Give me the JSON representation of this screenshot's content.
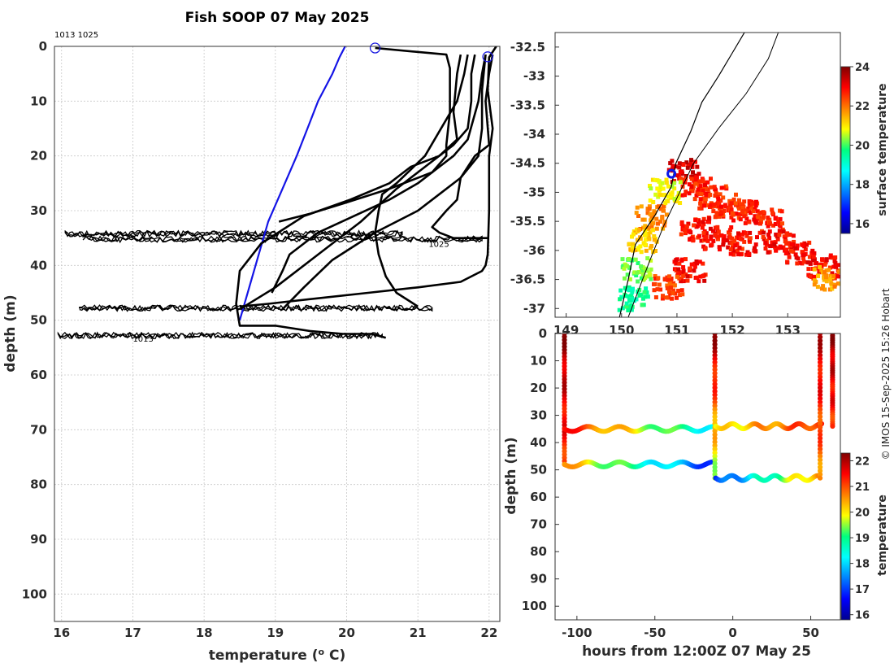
{
  "chart_data": [
    {
      "type": "line",
      "title": "Fish SOOP 07 May 2025",
      "xlabel": "temperature (°C)",
      "xlabel_prefix": "temperature (",
      "xlabel_sup": "o",
      "xlabel_suffix": " C)",
      "ylabel": "depth (m)",
      "xlim": [
        15.9,
        22.15
      ],
      "ylim": [
        0,
        105
      ],
      "y_reversed": true,
      "xticks": [
        16,
        17,
        18,
        19,
        20,
        21,
        22
      ],
      "yticks": [
        0,
        10,
        20,
        30,
        40,
        50,
        60,
        70,
        80,
        90,
        100
      ],
      "grid": true,
      "top_annotation": "1013 1025",
      "profile_labels": [
        {
          "text": "1025",
          "x": 21.15,
          "y": 36
        },
        {
          "text": "1013",
          "x": 17.0,
          "y": 53.3
        }
      ],
      "circles": [
        {
          "x": 20.4,
          "y": 0.3
        },
        {
          "x": 21.98,
          "y": 1.9
        }
      ],
      "series": [
        {
          "name": "reference",
          "color": "#1414e6",
          "x": [
            19.98,
            19.9,
            19.8,
            19.6,
            19.45,
            19.3,
            19.1,
            18.9,
            18.7,
            18.5
          ],
          "y": [
            0,
            2,
            5,
            10,
            15,
            20,
            26,
            32,
            41,
            50
          ]
        },
        {
          "name": "surface",
          "color": "#000000",
          "x": [
            20.4,
            21.4,
            21.45,
            21.45,
            21.4,
            21.4,
            21.2,
            20.6,
            20.0,
            19.5,
            19.05
          ],
          "y": [
            0.3,
            1.5,
            4,
            12,
            18,
            20,
            23,
            26,
            28.5,
            30.5,
            32
          ]
        },
        {
          "name": "p2",
          "color": "#000000",
          "x": [
            21.6,
            21.55,
            21.5,
            21.55,
            21.3,
            20.9,
            20.6,
            20.05,
            19.4,
            18.8,
            18.5,
            18.45,
            18.5,
            19.0,
            19.5,
            19.95,
            20.35,
            20.55
          ],
          "y": [
            1.5,
            5,
            12,
            17,
            20,
            22,
            25,
            28,
            31,
            36,
            41,
            47,
            51,
            51,
            52,
            52.5,
            52.5,
            53.2
          ]
        },
        {
          "name": "p3",
          "color": "#000000",
          "x": [
            21.7,
            21.65,
            21.55,
            21.1,
            20.7,
            20.5,
            20.45,
            20.4,
            20.45,
            20.55,
            20.7,
            21.0
          ],
          "y": [
            1.5,
            5,
            10,
            20,
            25,
            27,
            30,
            34,
            38,
            42,
            45,
            47.5
          ]
        },
        {
          "name": "p4",
          "color": "#000000",
          "x": [
            21.8,
            21.75,
            21.75,
            21.7,
            21.5,
            21.1,
            20.7,
            20.2,
            19.6,
            19.0,
            18.5
          ],
          "y": [
            1.5,
            5,
            10,
            15,
            18,
            22,
            26,
            32,
            38,
            44,
            48
          ]
        },
        {
          "name": "p5",
          "color": "#000000",
          "x": [
            21.95,
            21.9,
            21.85,
            21.7,
            21.5,
            21.3,
            21.0,
            20.6,
            20.1,
            19.6,
            19.2,
            19.1,
            18.95
          ],
          "y": [
            1.5,
            5,
            10,
            17,
            20,
            22,
            25,
            28,
            31,
            34,
            38,
            41,
            45
          ]
        },
        {
          "name": "p6",
          "color": "#000000",
          "x": [
            22.05,
            22.0,
            21.95,
            22.0,
            21.8,
            21.6,
            21.55,
            21.4,
            21.2,
            21.3,
            21.5,
            21.95,
            21.98
          ],
          "y": [
            1.5,
            5,
            10,
            18,
            20,
            24,
            28,
            30,
            33,
            34,
            35,
            35,
            35
          ]
        },
        {
          "name": "p7",
          "color": "#000000",
          "x": [
            22.1,
            22.0,
            21.98,
            22.05,
            22.0,
            22.0,
            21.98,
            21.95,
            21.9,
            21.6,
            21.0,
            20.3,
            19.6,
            18.9,
            18.5
          ],
          "y": [
            0,
            2,
            8,
            15,
            20,
            30,
            38,
            40,
            41,
            43,
            44,
            45,
            46,
            47,
            47.5
          ]
        },
        {
          "name": "p8",
          "color": "#000000",
          "x": [
            21.95,
            21.9,
            21.9,
            21.85,
            21.6,
            21.3,
            21.0,
            20.4,
            19.8,
            19.4,
            19.1
          ],
          "y": [
            1.5,
            8,
            15,
            20,
            24,
            27,
            30,
            34,
            39,
            44,
            48
          ]
        }
      ],
      "bands": [
        {
          "y": 34.2,
          "xmin": 16.05,
          "xmax": 20.78
        },
        {
          "y": 35.2,
          "xmin": 16.3,
          "xmax": 21.9
        },
        {
          "y": 47.8,
          "xmin": 16.25,
          "xmax": 21.2
        },
        {
          "y": 52.8,
          "xmin": 15.95,
          "xmax": 20.5
        }
      ]
    },
    {
      "type": "heatmap",
      "title": "",
      "xlim": [
        148.8,
        153.95
      ],
      "ylim": [
        -37.15,
        -32.25
      ],
      "xticks": [
        149,
        150,
        151,
        152,
        153
      ],
      "xtick_labels": [
        "149",
        "150",
        "151",
        "152",
        "153"
      ],
      "yticks": [
        -32.5,
        -33,
        -33.5,
        -34,
        -34.5,
        -35,
        -35.5,
        -36,
        -36.5,
        -37
      ],
      "ytick_labels": [
        "-32.5",
        "-33",
        "-33.5",
        "-34",
        "-34.5",
        "-35",
        "-35.5",
        "-36",
        "-36.5",
        "-37"
      ],
      "colorbar": {
        "label": "surface temperature",
        "min": 15.5,
        "max": 24,
        "ticks": [
          16,
          18,
          20,
          22,
          24
        ]
      },
      "marker": {
        "lon": 150.9,
        "lat": -34.68
      },
      "coastline": [
        [
          152.25,
          -32.2
        ],
        [
          152.0,
          -32.6
        ],
        [
          151.75,
          -33.0
        ],
        [
          151.45,
          -33.45
        ],
        [
          151.25,
          -33.95
        ],
        [
          150.98,
          -34.5
        ],
        [
          150.9,
          -34.9
        ],
        [
          150.6,
          -35.4
        ],
        [
          150.25,
          -35.9
        ],
        [
          150.12,
          -36.5
        ],
        [
          149.95,
          -37.2
        ]
      ],
      "isobath": [
        [
          152.85,
          -32.2
        ],
        [
          152.65,
          -32.7
        ],
        [
          152.25,
          -33.3
        ],
        [
          151.75,
          -33.9
        ],
        [
          151.3,
          -34.5
        ],
        [
          151.05,
          -35.0
        ],
        [
          150.75,
          -35.6
        ],
        [
          150.5,
          -36.2
        ],
        [
          150.3,
          -36.7
        ],
        [
          150.1,
          -37.2
        ]
      ],
      "sst_patches": [
        {
          "lon": 151.1,
          "lat": -34.6,
          "temp": 23.2
        },
        {
          "lon": 151.3,
          "lat": -34.9,
          "temp": 22.7
        },
        {
          "lon": 151.6,
          "lat": -35.05,
          "temp": 22.6
        },
        {
          "lon": 151.9,
          "lat": -35.2,
          "temp": 22.6
        },
        {
          "lon": 152.2,
          "lat": -35.3,
          "temp": 22.6
        },
        {
          "lon": 152.6,
          "lat": -35.45,
          "temp": 22.7
        },
        {
          "lon": 151.3,
          "lat": -35.6,
          "temp": 22.8
        },
        {
          "lon": 151.7,
          "lat": -35.75,
          "temp": 22.9
        },
        {
          "lon": 152.2,
          "lat": -35.85,
          "temp": 22.8
        },
        {
          "lon": 152.8,
          "lat": -35.8,
          "temp": 22.9
        },
        {
          "lon": 153.2,
          "lat": -36.0,
          "temp": 22.9
        },
        {
          "lon": 153.6,
          "lat": -36.25,
          "temp": 22.9
        },
        {
          "lon": 150.5,
          "lat": -35.4,
          "temp": 21.8
        },
        {
          "lon": 150.35,
          "lat": -35.8,
          "temp": 21.2
        },
        {
          "lon": 150.25,
          "lat": -36.3,
          "temp": 20.2
        },
        {
          "lon": 150.2,
          "lat": -36.8,
          "temp": 19.6
        },
        {
          "lon": 150.75,
          "lat": -34.95,
          "temp": 20.8
        },
        {
          "lon": 151.2,
          "lat": -36.3,
          "temp": 22.9
        },
        {
          "lon": 150.8,
          "lat": -36.6,
          "temp": 22.4
        },
        {
          "lon": 153.7,
          "lat": -36.45,
          "temp": 21.6
        }
      ]
    },
    {
      "type": "scatter",
      "title": "",
      "xlabel": "hours from 12:00Z 07 May 25",
      "ylabel": "depth (m)",
      "xlim": [
        -114,
        69
      ],
      "ylim": [
        0,
        105
      ],
      "y_reversed": true,
      "xticks": [
        -100,
        -50,
        0,
        50
      ],
      "yticks": [
        0,
        10,
        20,
        30,
        40,
        50,
        60,
        70,
        80,
        90,
        100
      ],
      "colorbar": {
        "label": "temperature",
        "min": 15.8,
        "max": 22.3,
        "ticks": [
          16,
          17,
          18,
          19,
          20,
          21,
          22
        ]
      },
      "tracks": [
        {
          "name": "descent-1",
          "x": [
            -108,
            -108
          ],
          "y": [
            0,
            48
          ],
          "t0": 22.1,
          "t1": 21.2
        },
        {
          "name": "band-35-a",
          "x": [
            -108,
            -12
          ],
          "y": [
            35,
            35
          ],
          "t0": 21.4,
          "t1": 18.2
        },
        {
          "name": "band-48-a",
          "x": [
            -108,
            -12
          ],
          "y": [
            48,
            48
          ],
          "t0": 20.5,
          "t1": 16.9
        },
        {
          "name": "descent-2",
          "x": [
            -11.5,
            -11.5
          ],
          "y": [
            0,
            53
          ],
          "t0": 22.1,
          "t1": 19.5
        },
        {
          "name": "band-34-b",
          "x": [
            -11,
            57
          ],
          "y": [
            34,
            34
          ],
          "t0": 19.8,
          "t1": 21.3
        },
        {
          "name": "band-53-b",
          "x": [
            -11,
            55
          ],
          "y": [
            53,
            53
          ],
          "t0": 16.8,
          "t1": 20.6
        },
        {
          "name": "descent-3",
          "x": [
            56,
            56
          ],
          "y": [
            0,
            53
          ],
          "t0": 21.9,
          "t1": 20.6
        },
        {
          "name": "descent-4",
          "x": [
            64,
            64
          ],
          "y": [
            0,
            34
          ],
          "t0": 22.1,
          "t1": 21.2
        }
      ]
    }
  ],
  "credit": "© IMOS 15-Sep-2025 15:26 Hobart"
}
